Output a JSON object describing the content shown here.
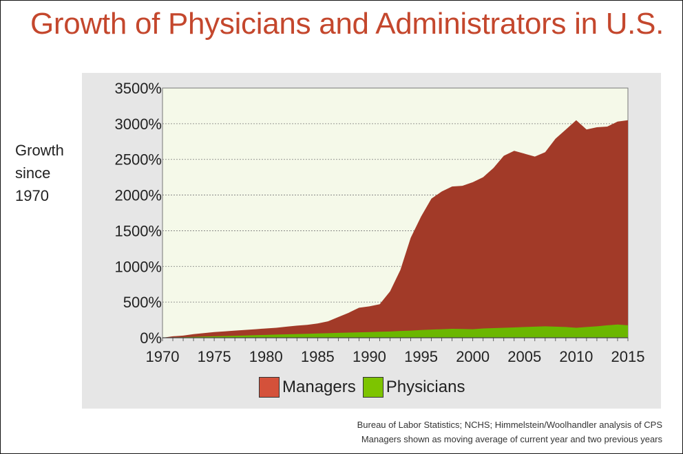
{
  "title": "Growth of Physicians and Administrators in U.S.",
  "ylabel_lines": [
    "Growth",
    "since",
    "1970"
  ],
  "source_lines": [
    "Bureau of Labor Statistics; NCHS; Himmelstein/Woolhandler analysis of CPS",
    "Managers shown as moving average of current year and two previous years"
  ],
  "colors": {
    "managers": "#a23a28",
    "physicians": "#6bb700",
    "plot_bg": "#f5f9e9",
    "managers_swatch": "#d4513a",
    "physicians_swatch": "#7dc400"
  },
  "chart_data": {
    "type": "area",
    "stacked": false,
    "x": [
      1970,
      1971,
      1972,
      1973,
      1974,
      1975,
      1976,
      1977,
      1978,
      1979,
      1980,
      1981,
      1982,
      1983,
      1984,
      1985,
      1986,
      1987,
      1988,
      1989,
      1990,
      1991,
      1992,
      1993,
      1994,
      1995,
      1996,
      1997,
      1998,
      1999,
      2000,
      2001,
      2002,
      2003,
      2004,
      2005,
      2006,
      2007,
      2008,
      2009,
      2010,
      2011,
      2012,
      2013,
      2014,
      2015
    ],
    "series": [
      {
        "name": "Managers",
        "values": [
          0,
          20,
          30,
          50,
          65,
          80,
          90,
          100,
          110,
          120,
          130,
          140,
          155,
          170,
          180,
          200,
          230,
          290,
          350,
          420,
          440,
          470,
          650,
          950,
          1400,
          1700,
          1950,
          2050,
          2120,
          2130,
          2180,
          2250,
          2380,
          2550,
          2620,
          2580,
          2540,
          2600,
          2790,
          2920,
          3050,
          2920,
          2950,
          2960,
          3030,
          3050
        ]
      },
      {
        "name": "Physicians",
        "values": [
          0,
          5,
          8,
          12,
          16,
          20,
          24,
          28,
          32,
          36,
          40,
          44,
          48,
          52,
          56,
          60,
          64,
          68,
          72,
          76,
          80,
          84,
          88,
          95,
          100,
          108,
          115,
          120,
          125,
          122,
          120,
          130,
          135,
          140,
          145,
          150,
          155,
          160,
          155,
          150,
          140,
          150,
          160,
          175,
          185,
          175
        ]
      }
    ],
    "ylim": [
      0,
      3500
    ],
    "xlim": [
      1970,
      2015
    ],
    "yticks": [
      0,
      500,
      1000,
      1500,
      2000,
      2500,
      3000,
      3500
    ],
    "ytick_labels": [
      "0%",
      "500%",
      "1000%",
      "1500%",
      "2000%",
      "2500%",
      "3000%",
      "3500%"
    ],
    "xticks": [
      1970,
      1975,
      1980,
      1985,
      1990,
      1995,
      2000,
      2005,
      2010,
      2015
    ],
    "grid": "horizontal",
    "legend": "bottom-center"
  }
}
